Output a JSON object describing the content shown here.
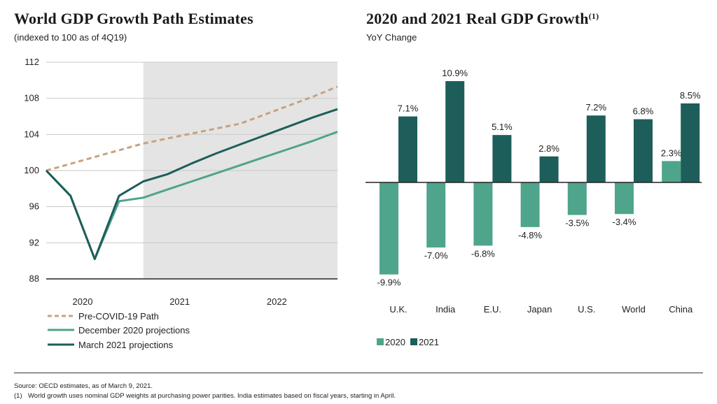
{
  "left": {
    "title": "World GDP Growth Path Estimates",
    "subtitle": "(indexed to 100 as of 4Q19)"
  },
  "right": {
    "title": "2020 and 2021 Real GDP Growth",
    "title_sup": "(1)",
    "subtitle": "YoY Change"
  },
  "footer": {
    "source": "Source: OECD estimates, as of March 9, 2021.",
    "note_num": "(1)",
    "note": "World growth uses nominal GDP weights at purchasing power parities. India estimates based on fiscal years, starting in April."
  },
  "colors": {
    "c2020": "#4fa48c",
    "c2021": "#1d5e5a",
    "precovid": "#c8a27e",
    "shade": "#e4e4e4"
  },
  "chart_data": [
    {
      "type": "line",
      "title": "World GDP Growth Path Estimates",
      "subtitle": "(indexed to 100 as of 4Q19)",
      "x": [
        0,
        1,
        2,
        3,
        4,
        5,
        6,
        7,
        8,
        9,
        10,
        11,
        12
      ],
      "x_tick_labels": [
        "2020",
        "2021",
        "2022"
      ],
      "ylim": [
        88,
        112
      ],
      "y_ticks": [
        88,
        92,
        96,
        100,
        104,
        108,
        112
      ],
      "shaded_from": 4,
      "series": [
        {
          "name": "Pre-COVID-19 Path",
          "style": "dashed",
          "values": [
            100,
            100.75,
            101.5,
            102.25,
            103.0,
            103.55,
            104.1,
            104.65,
            105.2,
            106.2,
            107.2,
            108.2,
            109.3
          ]
        },
        {
          "name": "December 2020 projections",
          "style": "solid",
          "values": [
            100,
            97.2,
            90.2,
            96.6,
            97.0,
            97.9,
            98.8,
            99.7,
            100.6,
            101.5,
            102.4,
            103.3,
            104.3
          ]
        },
        {
          "name": "March 2021 projections",
          "style": "solid",
          "values": [
            100,
            97.2,
            90.2,
            97.2,
            98.8,
            99.6,
            100.8,
            101.9,
            102.9,
            103.9,
            104.9,
            105.9,
            106.8
          ]
        }
      ],
      "legend": "bottom-left",
      "grid": true
    },
    {
      "type": "bar",
      "title": "2020 and 2021 Real GDP Growth",
      "subtitle": "YoY Change",
      "categories": [
        "U.K.",
        "India",
        "E.U.",
        "Japan",
        "U.S.",
        "World",
        "China"
      ],
      "series": [
        {
          "name": "2020",
          "values": [
            -9.9,
            -7.0,
            -6.8,
            -4.8,
            -3.5,
            -3.4,
            2.3
          ],
          "labels": [
            "-9.9%",
            "-7.0%",
            "-6.8%",
            "-4.8%",
            "-3.5%",
            "-3.4%",
            "2.3%"
          ]
        },
        {
          "name": "2021",
          "values": [
            7.1,
            10.9,
            5.1,
            2.8,
            7.2,
            6.8,
            8.5
          ],
          "labels": [
            "7.1%",
            "10.9%",
            "5.1%",
            "2.8%",
            "7.2%",
            "6.8%",
            "8.5%"
          ]
        }
      ],
      "legend": "bottom-left",
      "grid": false
    }
  ]
}
